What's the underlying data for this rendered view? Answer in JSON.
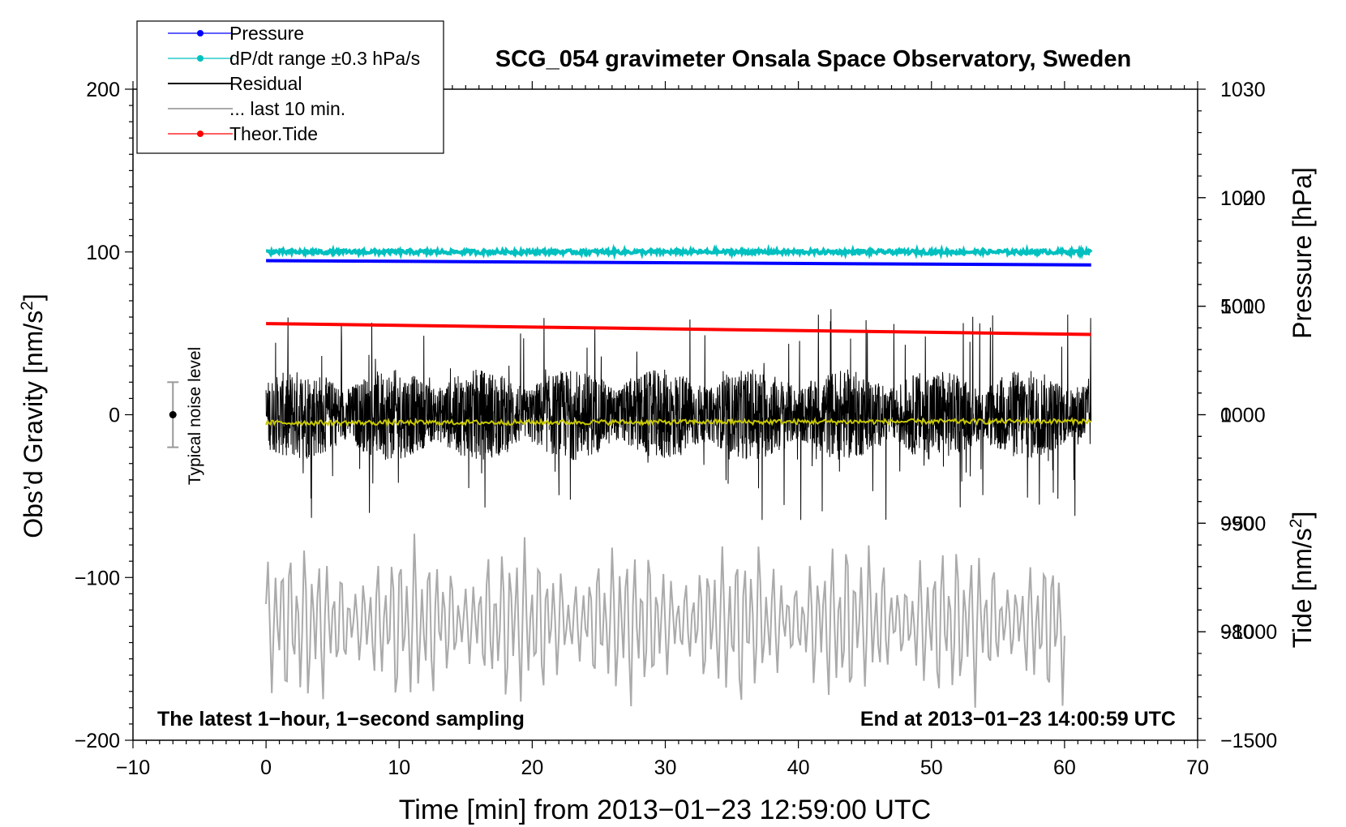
{
  "chart_data": {
    "type": "line",
    "title": "SCG_054 gravimeter Onsala Space Observatory, Sweden",
    "xlabel": "Time [min] from 2013−01−23 12:59:00 UTC",
    "ylabel_left": "Obs’d Gravity [nm/s",
    "ylabel_left_sup": "2",
    "ylabel_left_end": "]",
    "ylabel_pressure": "Pressure [hPa]",
    "ylabel_tide": "Tide [nm/s",
    "ylabel_tide_sup": "2",
    "ylabel_tide_end": "]",
    "xlim": [
      -10,
      70
    ],
    "ylim_left": [
      -200,
      200
    ],
    "ylim_pressure": [
      970,
      1030
    ],
    "ylim_tide": [
      -1500,
      1500
    ],
    "x_ticks": [
      -10,
      0,
      10,
      20,
      30,
      40,
      50,
      60,
      70
    ],
    "x_tick_labels": [
      "−10",
      "0",
      "10",
      "20",
      "30",
      "40",
      "50",
      "60",
      "70"
    ],
    "y_left_ticks": [
      -200,
      -100,
      0,
      100,
      200
    ],
    "y_left_tick_labels": [
      "−200",
      "−100",
      "0",
      "100",
      "200"
    ],
    "y_pressure_ticks": [
      980,
      990,
      1000,
      1010,
      1020,
      1030
    ],
    "y_pressure_tick_labels": [
      "980",
      "990",
      "1000",
      "1010",
      "1020",
      "1030"
    ],
    "y_tide_ticks": [
      -1500,
      -1000,
      -500,
      0,
      500,
      1000
    ],
    "y_tide_tick_labels": [
      "−1500",
      "−1000",
      "−500",
      "0",
      "500",
      "1000"
    ],
    "legend": {
      "placement": "top-left",
      "entries": [
        {
          "label": "Pressure",
          "color": "#0000ff",
          "style": "line-dot"
        },
        {
          "label": "dP/dt range ±0.3 hPa/s",
          "color": "#00c0c0",
          "style": "line-dot"
        },
        {
          "label": "Residual",
          "color": "#000000",
          "style": "line"
        },
        {
          "label": "... last 10 min.",
          "color": "#aaaaaa",
          "style": "line"
        },
        {
          "label": "Theor.Tide",
          "color": "#ff0000",
          "style": "line-dot"
        }
      ]
    },
    "annotations": {
      "bottom_left": "The latest 1−hour, 1−second sampling",
      "bottom_right": "End at 2013−01−23 14:00:59 UTC",
      "noise_label": "Typical noise level"
    },
    "noise_bar": {
      "x": -7,
      "center": 0,
      "half_range": 20
    },
    "series": [
      {
        "name": "Pressure",
        "axis": "pressure",
        "color": "#0000ff",
        "x": [
          0,
          62
        ],
        "values": [
          1014.2,
          1013.8
        ]
      },
      {
        "name": "dP/dt range ±0.3 hPa/s",
        "axis": "left",
        "color": "#00c0c0",
        "x": [
          0,
          62
        ],
        "values": [
          100,
          100
        ],
        "jitter": 1.2
      },
      {
        "name": "Residual",
        "axis": "left",
        "color": "#000000",
        "x": [
          0,
          62
        ],
        "noise_amp": 28,
        "spike_max": 65,
        "min": -75
      },
      {
        "name": "Residual smoothed",
        "axis": "left",
        "color": "#c8c800",
        "x": [
          0,
          62
        ],
        "values": [
          -5,
          -4
        ],
        "jitter": 1.5
      },
      {
        "name": "Theor.Tide",
        "axis": "tide",
        "color": "#ff0000",
        "x": [
          0,
          62
        ],
        "values": [
          420,
          370
        ]
      },
      {
        "name": "... last 10 min.",
        "axis": "left",
        "color": "#aaaaaa",
        "x": [
          0,
          60
        ],
        "center": -127,
        "amp_max": 60,
        "min": -185
      }
    ]
  }
}
